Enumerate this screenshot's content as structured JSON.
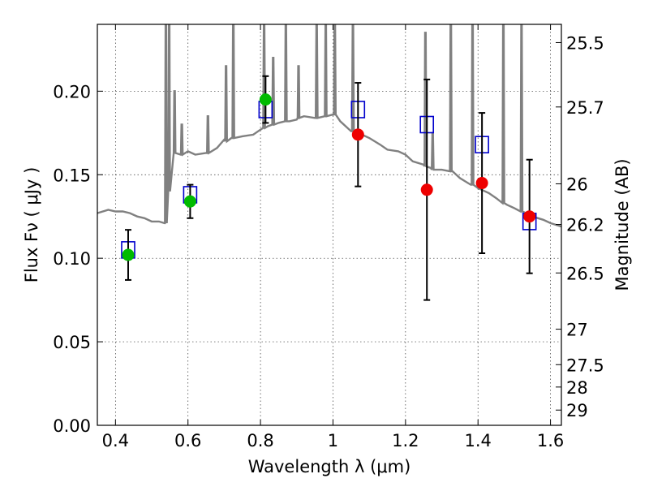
{
  "chart_data": {
    "type": "scatter",
    "xlabel": "Wavelength  λ (μm)",
    "ylabel": "Flux  Fν  ( μJy )",
    "y2label": "Magnitude (AB)",
    "xlim": [
      0.35,
      1.63
    ],
    "ylim": [
      0.0,
      0.24
    ],
    "grid": true,
    "x_ticks": [
      0.4,
      0.6,
      0.8,
      1.0,
      1.2,
      1.4,
      1.6
    ],
    "x_tick_labels": [
      "0.4",
      "0.6",
      "0.8",
      "1",
      "1.2",
      "1.4",
      "1.6"
    ],
    "y_ticks": [
      0.0,
      0.05,
      0.1,
      0.15,
      0.2
    ],
    "y_tick_labels": [
      "0.00",
      "0.05",
      "0.10",
      "0.15",
      "0.20"
    ],
    "mag_ticks": [
      25.5,
      25.7,
      26,
      26.2,
      26.5,
      27,
      27.5,
      28,
      29
    ],
    "mag_tick_labels": [
      "25.5",
      "25.7",
      "26",
      "26.2",
      "26.5",
      "27",
      "27.5",
      "28",
      "29"
    ],
    "colors": {
      "sed": "#808080",
      "model": "#0000cc",
      "optical": "#00bb00",
      "nir": "#ee0000",
      "error": "#000000"
    },
    "series": [
      {
        "name": "model-photometry",
        "marker": "open-square",
        "x": [
          0.435,
          0.606,
          0.814,
          1.069,
          1.259,
          1.411,
          1.542
        ],
        "y": [
          0.105,
          0.138,
          0.189,
          0.189,
          0.18,
          0.168,
          0.122
        ]
      },
      {
        "name": "observed-optical",
        "marker": "filled-circle",
        "x": [
          0.435,
          0.606,
          0.814
        ],
        "y": [
          0.102,
          0.134,
          0.195
        ],
        "yerr": [
          0.015,
          0.01,
          0.014
        ]
      },
      {
        "name": "observed-nir",
        "marker": "filled-circle",
        "x": [
          1.069,
          1.259,
          1.411,
          1.542
        ],
        "y": [
          0.174,
          0.141,
          0.145,
          0.125
        ],
        "yerr": [
          0.031,
          0.066,
          0.042,
          0.034
        ]
      }
    ],
    "sed_continuum": {
      "x": [
        0.35,
        0.38,
        0.4,
        0.42,
        0.44,
        0.46,
        0.48,
        0.5,
        0.52,
        0.535,
        0.55,
        0.58,
        0.6,
        0.62,
        0.65,
        0.68,
        0.7,
        0.72,
        0.75,
        0.78,
        0.8,
        0.82,
        0.85,
        0.88,
        0.9,
        0.92,
        0.95,
        0.98,
        1.0,
        1.02,
        1.05,
        1.08,
        1.1,
        1.13,
        1.15,
        1.18,
        1.2,
        1.22,
        1.25,
        1.27,
        1.3,
        1.33,
        1.35,
        1.38,
        1.4,
        1.43,
        1.45,
        1.48,
        1.5,
        1.52,
        1.55,
        1.58,
        1.6,
        1.63
      ],
      "y": [
        0.127,
        0.129,
        0.128,
        0.128,
        0.127,
        0.125,
        0.124,
        0.122,
        0.122,
        0.121,
        0.16,
        0.162,
        0.164,
        0.162,
        0.163,
        0.166,
        0.171,
        0.172,
        0.173,
        0.174,
        0.177,
        0.179,
        0.181,
        0.182,
        0.183,
        0.185,
        0.184,
        0.185,
        0.186,
        0.182,
        0.176,
        0.174,
        0.172,
        0.168,
        0.165,
        0.164,
        0.162,
        0.158,
        0.156,
        0.154,
        0.153,
        0.152,
        0.148,
        0.144,
        0.142,
        0.139,
        0.136,
        0.132,
        0.13,
        0.128,
        0.125,
        0.123,
        0.121,
        0.119
      ]
    },
    "sed_emission_lines": [
      {
        "x": 0.539,
        "base": 0.121,
        "peak": 0.24
      },
      {
        "x": 0.548,
        "base": 0.14,
        "peak": 0.24
      },
      {
        "x": 0.563,
        "base": 0.163,
        "peak": 0.2
      },
      {
        "x": 0.583,
        "base": 0.162,
        "peak": 0.18
      },
      {
        "x": 0.655,
        "base": 0.163,
        "peak": 0.185
      },
      {
        "x": 0.705,
        "base": 0.17,
        "peak": 0.215
      },
      {
        "x": 0.725,
        "base": 0.172,
        "peak": 0.24
      },
      {
        "x": 0.81,
        "base": 0.178,
        "peak": 0.24
      },
      {
        "x": 0.835,
        "base": 0.18,
        "peak": 0.22
      },
      {
        "x": 0.87,
        "base": 0.182,
        "peak": 0.24
      },
      {
        "x": 0.905,
        "base": 0.184,
        "peak": 0.215
      },
      {
        "x": 0.955,
        "base": 0.184,
        "peak": 0.24
      },
      {
        "x": 0.98,
        "base": 0.185,
        "peak": 0.24
      },
      {
        "x": 1.005,
        "base": 0.186,
        "peak": 0.24
      },
      {
        "x": 1.055,
        "base": 0.176,
        "peak": 0.24
      },
      {
        "x": 1.255,
        "base": 0.155,
        "peak": 0.235
      },
      {
        "x": 1.275,
        "base": 0.153,
        "peak": 0.175
      },
      {
        "x": 1.325,
        "base": 0.152,
        "peak": 0.24
      },
      {
        "x": 1.385,
        "base": 0.144,
        "peak": 0.24
      },
      {
        "x": 1.47,
        "base": 0.133,
        "peak": 0.24
      },
      {
        "x": 1.52,
        "base": 0.128,
        "peak": 0.24
      }
    ]
  }
}
